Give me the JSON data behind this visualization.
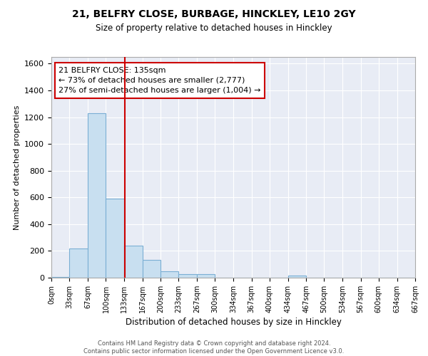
{
  "title1": "21, BELFRY CLOSE, BURBAGE, HINCKLEY, LE10 2GY",
  "title2": "Size of property relative to detached houses in Hinckley",
  "xlabel": "Distribution of detached houses by size in Hinckley",
  "ylabel": "Number of detached properties",
  "annotation_line1": "21 BELFRY CLOSE: 135sqm",
  "annotation_line2": "← 73% of detached houses are smaller (2,777)",
  "annotation_line3": "27% of semi-detached houses are larger (1,004) →",
  "footer1": "Contains HM Land Registry data © Crown copyright and database right 2024.",
  "footer2": "Contains public sector information licensed under the Open Government Licence v3.0.",
  "bin_edges": [
    0,
    33,
    67,
    100,
    133,
    167,
    200,
    233,
    267,
    300,
    334,
    367,
    400,
    434,
    467,
    500,
    534,
    567,
    600,
    634,
    667
  ],
  "bin_heights": [
    5,
    220,
    1230,
    590,
    240,
    135,
    50,
    25,
    25,
    0,
    0,
    0,
    0,
    15,
    0,
    0,
    0,
    0,
    0,
    0
  ],
  "bar_color": "#c8dff0",
  "bar_edge_color": "#7bafd4",
  "marker_x": 135,
  "marker_color": "#cc0000",
  "ylim": [
    0,
    1650
  ],
  "xlim": [
    0,
    667
  ],
  "bg_color": "#e8ecf5",
  "annotation_box_color": "#cc0000",
  "annotation_bg": "#ffffff",
  "tick_labels": [
    "0sqm",
    "33sqm",
    "67sqm",
    "100sqm",
    "133sqm",
    "167sqm",
    "200sqm",
    "233sqm",
    "267sqm",
    "300sqm",
    "334sqm",
    "367sqm",
    "400sqm",
    "434sqm",
    "467sqm",
    "500sqm",
    "534sqm",
    "567sqm",
    "600sqm",
    "634sqm",
    "667sqm"
  ],
  "yticks": [
    0,
    200,
    400,
    600,
    800,
    1000,
    1200,
    1400,
    1600
  ]
}
